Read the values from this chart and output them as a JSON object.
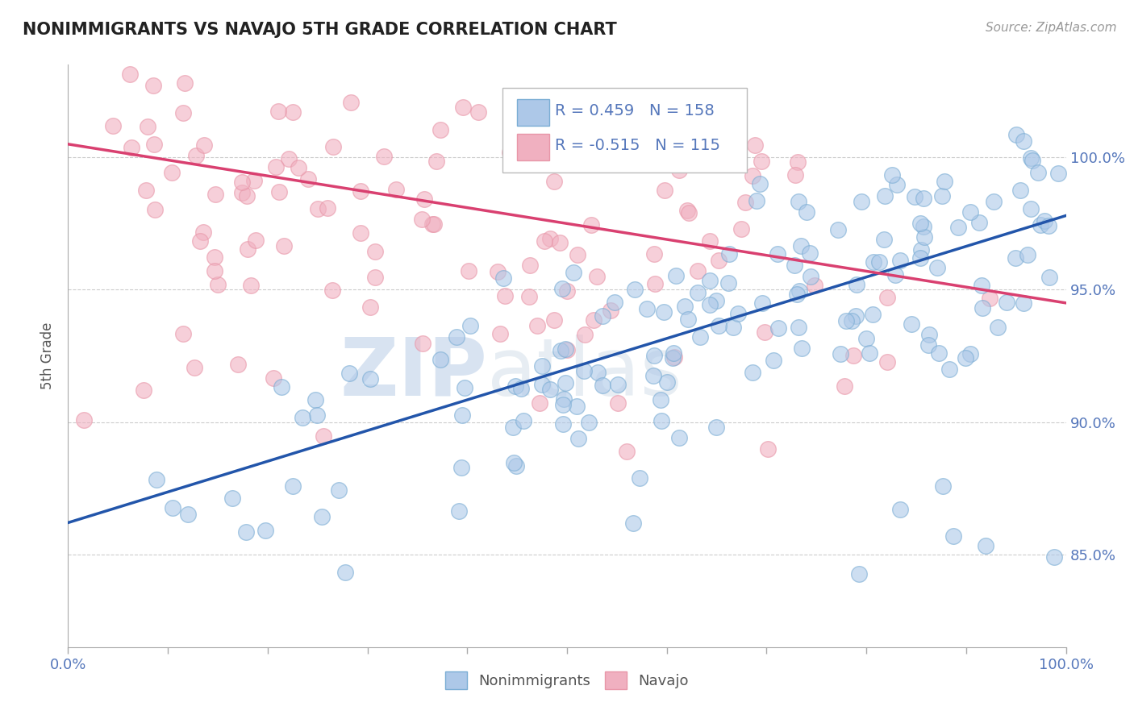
{
  "title": "NONIMMIGRANTS VS NAVAJO 5TH GRADE CORRELATION CHART",
  "source": "Source: ZipAtlas.com",
  "ylabel": "5th Grade",
  "blue_color": "#7aadd4",
  "pink_color": "#e896a8",
  "blue_fill": "#adc8e8",
  "pink_fill": "#f0b0c0",
  "trend_blue": "#2255aa",
  "trend_pink": "#d94070",
  "watermark_zip": "ZIP",
  "watermark_atlas": "atlas",
  "watermark_color": "#c8d8ec",
  "background_color": "#ffffff",
  "title_color": "#222222",
  "axis_label_color": "#555555",
  "tick_label_color": "#5577bb",
  "grid_color": "#cccccc",
  "x_min": 0.0,
  "x_max": 1.0,
  "y_min": 0.815,
  "y_max": 1.035,
  "blue_r": 0.459,
  "blue_n": 158,
  "pink_r": -0.515,
  "pink_n": 115,
  "blue_line_start_x": 0.0,
  "blue_line_start_y": 0.862,
  "blue_line_end_x": 1.0,
  "blue_line_end_y": 0.978,
  "pink_line_start_x": 0.0,
  "pink_line_start_y": 1.005,
  "pink_line_end_x": 1.0,
  "pink_line_end_y": 0.945,
  "yticks": [
    0.85,
    0.9,
    0.95,
    1.0
  ],
  "ytick_labels": [
    "85.0%",
    "90.0%",
    "95.0%",
    "100.0%"
  ],
  "xticks": [
    0.0,
    0.1,
    0.2,
    0.3,
    0.4,
    0.5,
    0.6,
    0.7,
    0.8,
    0.9,
    1.0
  ],
  "legend_label_blue": "Nonimmigrants",
  "legend_label_pink": "Navajo"
}
